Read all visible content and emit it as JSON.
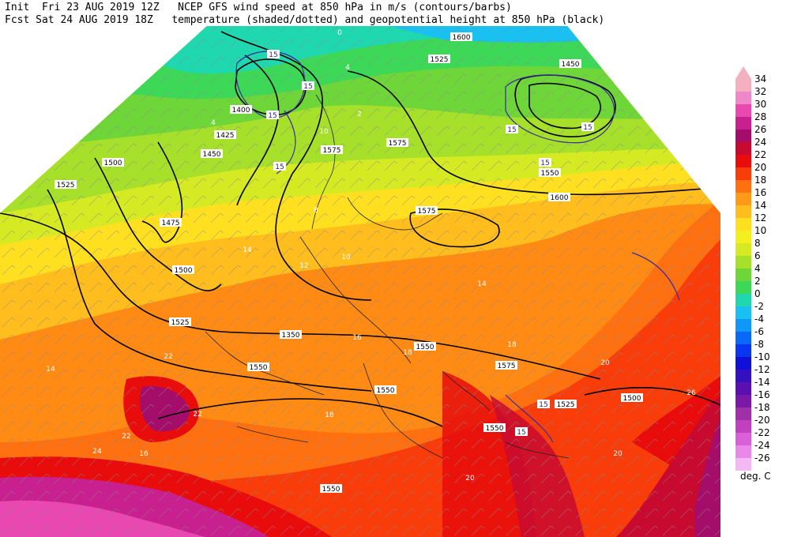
{
  "header": {
    "line1_left": "Init  Fri 23 AUG 2019 12Z",
    "line1_right": "NCEP GFS wind speed at 850 hPa in m/s (contours/barbs)",
    "line2_left": "Fcst Sat 24 AUG 2019 18Z",
    "line2_right": "temperature (shaded/dotted) and geopotential height at 850 hPa (black)"
  },
  "colorbar": {
    "units": "deg. C",
    "levels": [
      {
        "label": "34",
        "color": "#f5b0c0"
      },
      {
        "label": "32",
        "color": "#ee88c8"
      },
      {
        "label": "30",
        "color": "#e848b0"
      },
      {
        "label": "28",
        "color": "#c8208e"
      },
      {
        "label": "26",
        "color": "#a40e6a"
      },
      {
        "label": "24",
        "color": "#c80a30"
      },
      {
        "label": "22",
        "color": "#e80c0c"
      },
      {
        "label": "20",
        "color": "#f83c0a"
      },
      {
        "label": "18",
        "color": "#ff7010"
      },
      {
        "label": "16",
        "color": "#ff9a18"
      },
      {
        "label": "14",
        "color": "#ffbe1e"
      },
      {
        "label": "12",
        "color": "#ffe020"
      },
      {
        "label": "10",
        "color": "#f4f020"
      },
      {
        "label": "8",
        "color": "#d6ea24"
      },
      {
        "label": "6",
        "color": "#a6e02a"
      },
      {
        "label": "4",
        "color": "#6ed638"
      },
      {
        "label": "2",
        "color": "#3ed858"
      },
      {
        "label": "0",
        "color": "#20d8b0"
      },
      {
        "label": "-2",
        "color": "#1ac0f0"
      },
      {
        "label": "-4",
        "color": "#1098f8"
      },
      {
        "label": "-6",
        "color": "#0a68f8"
      },
      {
        "label": "-8",
        "color": "#0a36f0"
      },
      {
        "label": "-10",
        "color": "#1010d8"
      },
      {
        "label": "-12",
        "color": "#3410c0"
      },
      {
        "label": "-14",
        "color": "#5a10b0"
      },
      {
        "label": "-16",
        "color": "#7a18a8"
      },
      {
        "label": "-18",
        "color": "#a030a8"
      },
      {
        "label": "-20",
        "color": "#c040c0"
      },
      {
        "label": "-22",
        "color": "#d860d8"
      },
      {
        "label": "-24",
        "color": "#e888e8"
      },
      {
        "label": "-26",
        "color": "#f4b8f4"
      }
    ]
  },
  "height_labels": [
    "1600",
    "1525",
    "1450",
    "1400",
    "1425",
    "1450",
    "1500",
    "1525",
    "1475",
    "1500",
    "1525",
    "1550",
    "1550",
    "1550",
    "1550",
    "1575",
    "1575",
    "1600",
    "1575",
    "1550",
    "1525",
    "1500",
    "1550",
    "1350",
    "1575"
  ],
  "wind_labels": [
    "15",
    "15",
    "15",
    "15",
    "15",
    "15",
    "15",
    "15",
    "15"
  ],
  "temp_labels": [
    "0",
    "4",
    "4",
    "2",
    "8",
    "10",
    "10",
    "12",
    "14",
    "14",
    "16",
    "18",
    "18",
    "20",
    "22",
    "24",
    "22",
    "20",
    "26",
    "20",
    "22",
    "18",
    "14",
    "16"
  ]
}
